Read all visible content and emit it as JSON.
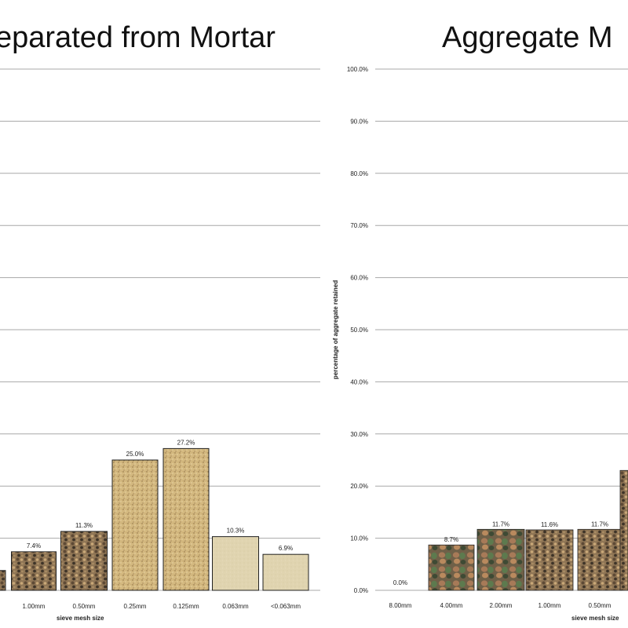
{
  "chart_data": [
    {
      "type": "bar",
      "title": "eparated from Mortar",
      "xlabel": "sieve mesh size",
      "ylabel": "",
      "ylim": [
        0,
        100
      ],
      "categories": [
        "",
        "1.00mm",
        "0.50mm",
        "0.25mm",
        "0.125mm",
        "0.063mm",
        "<0.063mm"
      ],
      "values": [
        null,
        7.4,
        11.3,
        25.0,
        27.2,
        10.3,
        6.9
      ],
      "value_labels": [
        "",
        "7.4%",
        "11.3%",
        "25.0%",
        "27.2%",
        "10.3%",
        "6.9%"
      ],
      "grid": true,
      "legend": "none"
    },
    {
      "type": "bar",
      "title": "Aggregate M",
      "xlabel": "sieve mesh size",
      "ylabel": "percentage of aggregate retained",
      "ylim": [
        0,
        100
      ],
      "yticks": [
        "0.0%",
        "10.0%",
        "20.0%",
        "30.0%",
        "40.0%",
        "50.0%",
        "60.0%",
        "70.0%",
        "80.0%",
        "90.0%",
        "100.0%"
      ],
      "categories": [
        "8.00mm",
        "4.00mm",
        "2.00mm",
        "1.00mm",
        "0.50mm",
        ""
      ],
      "values": [
        0.0,
        8.7,
        11.7,
        11.6,
        11.7,
        23.0
      ],
      "value_labels": [
        "0.0%",
        "8.7%",
        "11.7%",
        "11.6%",
        "11.7%",
        ""
      ],
      "grid": true,
      "legend": "none"
    }
  ],
  "colors": {
    "sand_fill": "#d2b77e",
    "sand_dark": "#a5875a",
    "fine_fill": "#ded2ad",
    "gravel_fill": "#9a7a52",
    "bar_border": "#222222",
    "gridline": "#a8a8a8"
  }
}
